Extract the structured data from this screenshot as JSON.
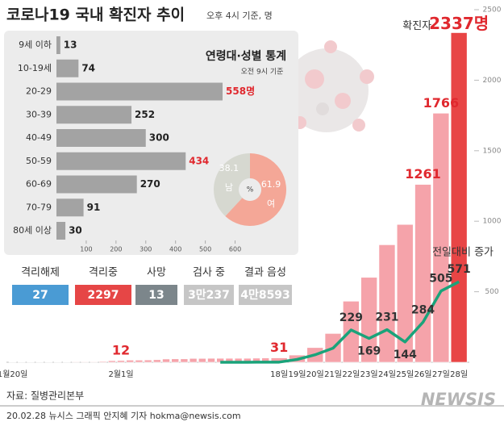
{
  "chart_data": [
    {
      "type": "bar",
      "title": "코로나19 국내 확진자 추이",
      "subtitle": "오후 4시 기준, 명",
      "categories": [
        "1월20일",
        null,
        null,
        null,
        null,
        null,
        null,
        null,
        null,
        null,
        null,
        null,
        "2월1일",
        null,
        null,
        null,
        null,
        null,
        null,
        null,
        null,
        null,
        null,
        null,
        null,
        null,
        null,
        null,
        null,
        "18일",
        "19일",
        "20일",
        "21일",
        "22일",
        "23일",
        "24일",
        "25일",
        "26일",
        "27일",
        "28일"
      ],
      "series": [
        {
          "name": "확진자",
          "type": "bar",
          "color": "#f5a3aa",
          "colors": [
            "#f5a3aa",
            "#f5a3aa",
            "#f5a3aa",
            "#f5a3aa",
            "#f5a3aa",
            "#f5a3aa",
            "#f5a3aa",
            "#f5a3aa",
            "#f5a3aa",
            "#f5a3aa",
            "#f5a3aa",
            "#f5a3aa",
            "#f5a3aa",
            "#f5a3aa",
            "#f5a3aa",
            "#f5a3aa",
            "#f5a3aa",
            "#f5a3aa",
            "#f5a3aa",
            "#f5a3aa",
            "#f5a3aa",
            "#f5a3aa",
            "#f5a3aa",
            "#f5a3aa",
            "#f5a3aa",
            "#f5a3aa",
            "#f5a3aa",
            "#f5a3aa",
            "#f5a3aa",
            "#f5a3aa",
            "#f5a3aa",
            "#f5a3aa",
            "#f5a3aa",
            "#f5a3aa",
            "#f5a3aa",
            "#f5a3aa",
            "#f5a3aa",
            "#f5a3aa",
            "#f5a3aa",
            "#e84545"
          ],
          "values": [
            1,
            1,
            1,
            1,
            2,
            2,
            3,
            4,
            4,
            4,
            6,
            11,
            12,
            15,
            15,
            16,
            18,
            23,
            24,
            24,
            27,
            27,
            28,
            28,
            28,
            28,
            28,
            29,
            30,
            31,
            51,
            104,
            204,
            433,
            602,
            833,
            977,
            1261,
            1766,
            2337
          ],
          "value_labels": [
            null,
            null,
            null,
            null,
            null,
            null,
            null,
            null,
            null,
            null,
            null,
            null,
            "12",
            null,
            null,
            null,
            null,
            null,
            null,
            null,
            null,
            null,
            null,
            null,
            null,
            null,
            null,
            null,
            null,
            "31",
            null,
            null,
            null,
            null,
            null,
            null,
            null,
            "1261",
            "1766",
            "2337명"
          ],
          "label_color": "#e0282e"
        },
        {
          "name": "전일대비 증가",
          "type": "line",
          "color": "#1aa37a",
          "values": [
            null,
            null,
            null,
            null,
            null,
            null,
            null,
            null,
            null,
            null,
            null,
            null,
            null,
            null,
            null,
            null,
            null,
            null,
            null,
            null,
            null,
            null,
            null,
            0,
            0,
            0,
            0,
            1,
            1,
            1,
            20,
            53,
            100,
            229,
            169,
            231,
            144,
            284,
            505,
            571
          ],
          "value_labels": [
            null,
            null,
            null,
            null,
            null,
            null,
            null,
            null,
            null,
            null,
            null,
            null,
            null,
            null,
            null,
            null,
            null,
            null,
            null,
            null,
            null,
            null,
            null,
            null,
            null,
            null,
            null,
            null,
            null,
            null,
            null,
            null,
            null,
            "229",
            "169",
            "231",
            "144",
            "284",
            "505",
            "571"
          ]
        }
      ],
      "ylim": [
        0,
        2500
      ],
      "yticks": [
        500,
        1000,
        1500,
        2000,
        2500
      ]
    },
    {
      "type": "bar",
      "orientation": "horizontal",
      "title": "연령대·성별 통계",
      "subtitle": "오전 9시 기준",
      "categories": [
        "9세 이하",
        "10-19세",
        "20-29",
        "30-39",
        "40-49",
        "50-59",
        "60-69",
        "70-79",
        "80세 이상"
      ],
      "values": [
        13,
        74,
        558,
        252,
        300,
        434,
        270,
        91,
        30
      ],
      "value_labels": [
        null,
        null,
        "558명",
        null,
        null,
        null,
        null,
        null,
        null
      ],
      "value_label_colors": [
        "#222222",
        "#222222",
        "#e0282e",
        "#222222",
        "#222222",
        "#e0282e",
        "#222222",
        "#222222",
        "#222222"
      ],
      "color": "#a3a3a3",
      "xlim": [
        0,
        650
      ],
      "xticks": [
        100,
        200,
        300,
        400,
        500,
        600
      ]
    },
    {
      "type": "pie",
      "categories": [
        "남",
        "여"
      ],
      "values": [
        38.1,
        61.9
      ],
      "colors": [
        "#d6d8d0",
        "#f4a797"
      ],
      "center_label": "%"
    }
  ],
  "status": [
    {
      "label": "격리해제",
      "value": 27,
      "color": "#4a9bd4"
    },
    {
      "label": "격리중",
      "value": 2297,
      "color": "#e64646"
    },
    {
      "label": "사망",
      "value": 13,
      "color": "#7c868b"
    },
    {
      "label": "검사 중",
      "value": "3만237",
      "color": "#c6c6c6"
    },
    {
      "label": "결과 음성",
      "value": "4만8593",
      "color": "#c6c6c6"
    }
  ],
  "source": "자료: 질병관리본부",
  "credit": "20.02.28 뉴시스 그래픽 안지혜 기자 hokma@newsis.com",
  "logo": "NEWSIS"
}
